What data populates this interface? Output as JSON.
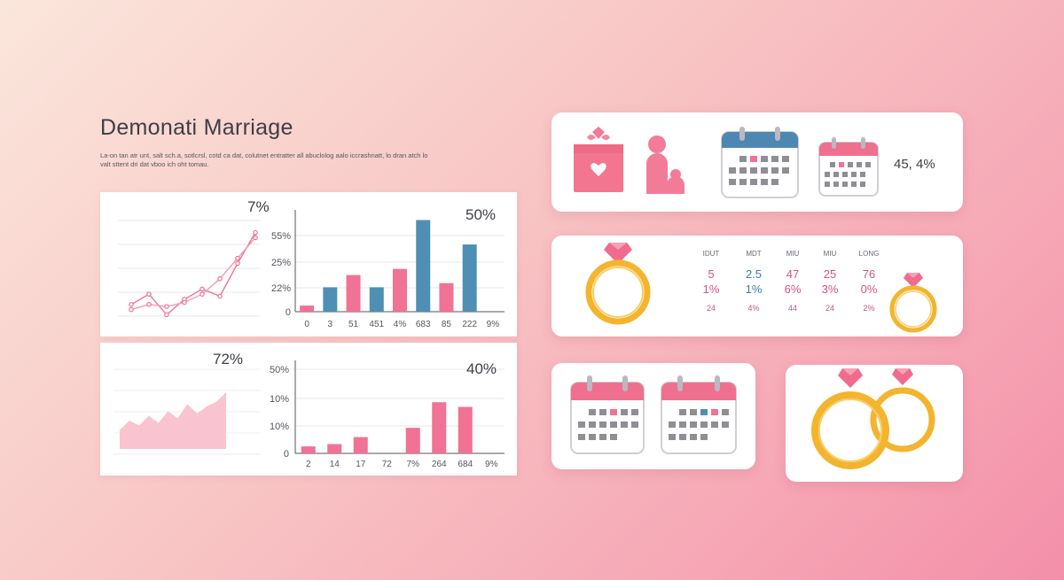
{
  "header": {
    "title": "Demonati Marriage",
    "subtitle": "La-on tan atr unt, salt sch.a, sotlcrsl, cotd ca dat, colutnet entratter all abuclolog aalo iccrashnatt, lo dran atch lo valt sttent dri dat vboo ich oht tomau."
  },
  "colors": {
    "pink": "#f07294",
    "pink_light": "#f9c4cf",
    "blue": "#4f8fb3",
    "gold": "#f3b42e",
    "gem": "#f06b8d",
    "calendar_grey": "#8e8e94"
  },
  "chart_data": [
    {
      "type": "line",
      "title": "7%",
      "x": [
        1,
        2,
        3,
        4,
        5,
        6,
        7,
        8
      ],
      "series": [
        {
          "values": [
            2,
            3,
            1,
            2.5,
            3.5,
            2.8,
            6,
            9
          ]
        },
        {
          "values": [
            1.5,
            2,
            1.8,
            2.2,
            3,
            4.5,
            6.5,
            8.5
          ]
        }
      ]
    },
    {
      "type": "bar",
      "title": "50%",
      "categories": [
        "0",
        "3",
        "51",
        "451",
        "4%",
        "683",
        "85",
        "222",
        "9%"
      ],
      "yticks": [
        "0",
        "22%",
        "25%",
        "55%"
      ],
      "series": [
        {
          "color": "pink",
          "values": [
            3,
            null,
            18,
            null,
            21,
            null,
            14,
            null,
            null
          ]
        },
        {
          "color": "blue",
          "values": [
            null,
            12,
            null,
            12,
            null,
            45,
            null,
            33,
            null
          ]
        }
      ],
      "ylim": [
        0,
        50
      ]
    },
    {
      "type": "area",
      "title": "72%",
      "x": [
        1,
        2,
        3,
        4,
        5,
        6,
        7,
        8,
        9,
        10,
        11,
        12
      ],
      "values": [
        8,
        12,
        10,
        14,
        11,
        16,
        13,
        19,
        15,
        18,
        20,
        24
      ],
      "ylim": [
        0,
        30
      ]
    },
    {
      "type": "bar",
      "title": "40%",
      "categories": [
        "2",
        "14",
        "17",
        "72",
        "7%",
        "264",
        "684",
        "9%"
      ],
      "yticks": [
        "0",
        "10%",
        "10%",
        "50%"
      ],
      "values": [
        3,
        4,
        7,
        0,
        11,
        22,
        20,
        0
      ],
      "ylim": [
        0,
        40
      ]
    }
  ],
  "cards": {
    "top": {
      "percent": "45, 4%"
    },
    "middle": {
      "columns": [
        {
          "head": "IDUT",
          "v1": "5",
          "v2": "1%",
          "v3": "24",
          "v1_color": "pink",
          "v2_color": "pink"
        },
        {
          "head": "MDT",
          "v1": "2.5",
          "v2": "1%",
          "v3": "4%",
          "v1_color": "blue",
          "v2_color": "blue"
        },
        {
          "head": "MIU",
          "v1": "47",
          "v2": "6%",
          "v3": "44",
          "v1_color": "pink",
          "v2_color": "pink"
        },
        {
          "head": "MIU",
          "v1": "25",
          "v2": "3%",
          "v3": "24",
          "v1_color": "pink",
          "v2_color": "pink"
        },
        {
          "head": "LONG",
          "v1": "76",
          "v2": "0%",
          "v3": "2%",
          "v1_color": "pink",
          "v2_color": "pink"
        }
      ]
    }
  }
}
